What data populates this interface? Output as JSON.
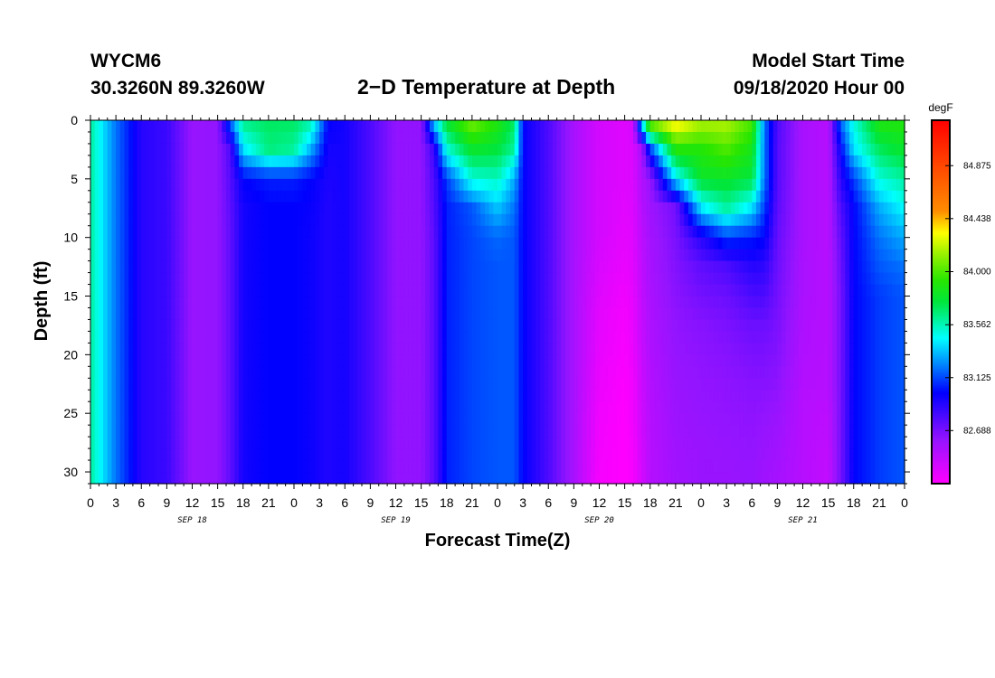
{
  "header": {
    "station": "WYCM6",
    "coords": "30.3260N 89.3260W",
    "title": "2−D Temperature at Depth",
    "model_start_label": "Model Start Time",
    "model_start_value": "09/18/2020 Hour 00"
  },
  "chart_data": {
    "type": "heatmap",
    "title": "2−D Temperature at Depth",
    "xlabel": "Forecast Time(Z)",
    "ylabel": "Depth (ft)",
    "x_range_hours": [
      0,
      96
    ],
    "ylim": [
      0,
      31
    ],
    "y_inverted": true,
    "x_tick_labels": [
      "0",
      "3",
      "6",
      "9",
      "12",
      "15",
      "18",
      "21",
      "0",
      "3",
      "6",
      "9",
      "12",
      "15",
      "18",
      "21",
      "0",
      "3",
      "6",
      "9",
      "12",
      "15",
      "18",
      "21",
      "0",
      "3",
      "6",
      "9",
      "12",
      "15",
      "18",
      "21",
      "0"
    ],
    "y_ticks": [
      0,
      5,
      10,
      15,
      20,
      25,
      30
    ],
    "day_labels": [
      {
        "label": "SEP 18",
        "hour": 12
      },
      {
        "label": "SEP 19",
        "hour": 36
      },
      {
        "label": "SEP 20",
        "hour": 60
      },
      {
        "label": "SEP 21",
        "hour": 84
      }
    ],
    "colorbar": {
      "unit": "degF",
      "min": 82.25,
      "max": 85.25,
      "tick_values": [
        "84.875",
        "84.438",
        "84.000",
        "83.562",
        "83.125",
        "82.688"
      ]
    },
    "depth_rows": [
      0,
      2.5,
      5,
      7.5,
      10,
      12.5,
      15,
      17.5,
      20,
      22.5,
      25,
      27.5,
      30
    ],
    "temperature_profile": [
      {
        "hour": 0,
        "temps": [
          83.6,
          83.6,
          83.6,
          83.6,
          83.6,
          83.6,
          83.6,
          83.6,
          83.6,
          83.6,
          83.6,
          83.6,
          83.6
        ]
      },
      {
        "hour": 3,
        "temps": [
          83.2,
          83.2,
          83.2,
          83.2,
          83.2,
          83.2,
          83.2,
          83.2,
          83.2,
          83.2,
          83.2,
          83.2,
          83.2
        ]
      },
      {
        "hour": 6,
        "temps": [
          82.9,
          82.9,
          82.9,
          82.9,
          82.9,
          82.9,
          82.9,
          82.9,
          82.9,
          82.9,
          82.9,
          82.9,
          82.9
        ]
      },
      {
        "hour": 9,
        "temps": [
          82.85,
          82.85,
          82.85,
          82.85,
          82.85,
          82.85,
          82.85,
          82.85,
          82.85,
          82.85,
          82.85,
          82.85,
          82.85
        ]
      },
      {
        "hour": 12,
        "temps": [
          82.6,
          82.6,
          82.6,
          82.6,
          82.6,
          82.6,
          82.6,
          82.6,
          82.6,
          82.6,
          82.6,
          82.6,
          82.6
        ]
      },
      {
        "hour": 15,
        "temps": [
          82.62,
          82.62,
          82.62,
          82.62,
          82.62,
          82.62,
          82.62,
          82.62,
          82.62,
          82.62,
          82.62,
          82.62,
          82.62
        ]
      },
      {
        "hour": 16.5,
        "temps": [
          83.2,
          82.8,
          82.78,
          82.76,
          82.75,
          82.75,
          82.75,
          82.75,
          82.75,
          82.75,
          82.75,
          82.75,
          82.75
        ]
      },
      {
        "hour": 18,
        "temps": [
          83.65,
          83.4,
          83.0,
          82.95,
          82.95,
          82.95,
          82.95,
          82.95,
          82.95,
          82.95,
          82.95,
          82.95,
          82.95
        ]
      },
      {
        "hour": 21,
        "temps": [
          83.7,
          83.65,
          83.05,
          83.0,
          83.0,
          83.0,
          83.0,
          83.0,
          83.0,
          83.0,
          83.0,
          83.0,
          83.0
        ]
      },
      {
        "hour": 24,
        "temps": [
          83.7,
          83.6,
          83.05,
          83.0,
          83.0,
          83.0,
          83.0,
          83.0,
          83.0,
          83.0,
          83.0,
          83.0,
          83.0
        ]
      },
      {
        "hour": 26,
        "temps": [
          83.6,
          83.3,
          83.0,
          82.98,
          82.97,
          82.97,
          82.97,
          82.97,
          82.97,
          82.97,
          82.97,
          82.97,
          82.97
        ]
      },
      {
        "hour": 28,
        "temps": [
          83.0,
          82.95,
          82.93,
          82.92,
          82.92,
          82.92,
          82.92,
          82.92,
          82.92,
          82.92,
          82.92,
          82.92,
          82.92
        ]
      },
      {
        "hour": 30,
        "temps": [
          82.95,
          82.95,
          82.95,
          82.95,
          82.95,
          82.95,
          82.95,
          82.95,
          82.95,
          82.95,
          82.95,
          82.95,
          82.95
        ]
      },
      {
        "hour": 33,
        "temps": [
          82.8,
          82.8,
          82.8,
          82.8,
          82.8,
          82.8,
          82.8,
          82.8,
          82.8,
          82.8,
          82.8,
          82.8,
          82.8
        ]
      },
      {
        "hour": 36,
        "temps": [
          82.62,
          82.62,
          82.62,
          82.62,
          82.62,
          82.62,
          82.62,
          82.62,
          82.62,
          82.62,
          82.62,
          82.62,
          82.62
        ]
      },
      {
        "hour": 39,
        "temps": [
          82.62,
          82.62,
          82.62,
          82.62,
          82.62,
          82.62,
          82.62,
          82.62,
          82.62,
          82.62,
          82.62,
          82.62,
          82.62
        ]
      },
      {
        "hour": 40.5,
        "temps": [
          83.4,
          82.85,
          82.8,
          82.78,
          82.76,
          82.76,
          82.76,
          82.76,
          82.76,
          82.76,
          82.76,
          82.76,
          82.76
        ]
      },
      {
        "hour": 42,
        "temps": [
          83.8,
          83.5,
          83.1,
          83.05,
          83.05,
          83.05,
          83.05,
          83.05,
          83.05,
          83.05,
          83.05,
          83.05,
          83.05
        ]
      },
      {
        "hour": 45,
        "temps": [
          84.1,
          83.8,
          83.5,
          83.15,
          83.12,
          83.12,
          83.12,
          83.12,
          83.12,
          83.12,
          83.12,
          83.12,
          83.12
        ]
      },
      {
        "hour": 48,
        "temps": [
          83.9,
          83.75,
          83.55,
          83.35,
          83.18,
          83.15,
          83.15,
          83.15,
          83.15,
          83.15,
          83.15,
          83.15,
          83.15
        ]
      },
      {
        "hour": 50,
        "temps": [
          83.7,
          83.6,
          83.3,
          83.2,
          83.15,
          83.15,
          83.15,
          83.15,
          83.15,
          83.15,
          83.15,
          83.15,
          83.15
        ]
      },
      {
        "hour": 51,
        "temps": [
          83.0,
          83.0,
          83.0,
          83.0,
          83.0,
          83.0,
          83.0,
          83.0,
          83.0,
          83.0,
          83.0,
          83.0,
          83.0
        ]
      },
      {
        "hour": 54,
        "temps": [
          82.8,
          82.8,
          82.8,
          82.8,
          82.8,
          82.8,
          82.8,
          82.8,
          82.8,
          82.8,
          82.8,
          82.8,
          82.8
        ]
      },
      {
        "hour": 57,
        "temps": [
          82.55,
          82.55,
          82.55,
          82.55,
          82.55,
          82.55,
          82.55,
          82.55,
          82.55,
          82.55,
          82.55,
          82.55,
          82.55
        ]
      },
      {
        "hour": 60,
        "temps": [
          82.4,
          82.4,
          82.4,
          82.4,
          82.4,
          82.38,
          82.36,
          82.34,
          82.33,
          82.32,
          82.3,
          82.29,
          82.28
        ]
      },
      {
        "hour": 63,
        "temps": [
          82.36,
          82.36,
          82.36,
          82.35,
          82.34,
          82.32,
          82.3,
          82.28,
          82.27,
          82.26,
          82.25,
          82.25,
          82.25
        ]
      },
      {
        "hour": 64,
        "temps": [
          82.4,
          82.38,
          82.38,
          82.37,
          82.36,
          82.35,
          82.34,
          82.33,
          82.32,
          82.3,
          82.3,
          82.29,
          82.28
        ]
      },
      {
        "hour": 65,
        "temps": [
          83.5,
          82.55,
          82.52,
          82.5,
          82.48,
          82.47,
          82.46,
          82.45,
          82.44,
          82.43,
          82.42,
          82.41,
          82.4
        ]
      },
      {
        "hour": 66,
        "temps": [
          84.2,
          83.1,
          82.6,
          82.58,
          82.56,
          82.55,
          82.54,
          82.53,
          82.52,
          82.51,
          82.5,
          82.5,
          82.5
        ]
      },
      {
        "hour": 69,
        "temps": [
          84.4,
          83.9,
          83.4,
          82.7,
          82.68,
          82.66,
          82.64,
          82.62,
          82.61,
          82.6,
          82.59,
          82.58,
          82.57
        ]
      },
      {
        "hour": 72,
        "temps": [
          84.2,
          83.9,
          83.8,
          83.4,
          82.9,
          82.75,
          82.7,
          82.65,
          82.63,
          82.62,
          82.61,
          82.6,
          82.6
        ]
      },
      {
        "hour": 75,
        "temps": [
          84.2,
          84.0,
          83.8,
          83.6,
          83.1,
          82.8,
          82.72,
          82.68,
          82.65,
          82.63,
          82.62,
          82.61,
          82.6
        ]
      },
      {
        "hour": 78,
        "temps": [
          84.0,
          83.85,
          83.75,
          83.4,
          83.05,
          82.9,
          82.8,
          82.72,
          82.68,
          82.65,
          82.63,
          82.62,
          82.61
        ]
      },
      {
        "hour": 79.5,
        "temps": [
          83.2,
          83.2,
          83.2,
          83.1,
          83.0,
          82.88,
          82.8,
          82.72,
          82.68,
          82.65,
          82.62,
          82.6,
          82.58
        ]
      },
      {
        "hour": 81,
        "temps": [
          82.8,
          82.78,
          82.78,
          82.76,
          82.74,
          82.72,
          82.7,
          82.68,
          82.66,
          82.63,
          82.6,
          82.58,
          82.56
        ]
      },
      {
        "hour": 84,
        "temps": [
          82.55,
          82.55,
          82.55,
          82.55,
          82.55,
          82.54,
          82.54,
          82.53,
          82.52,
          82.51,
          82.5,
          82.5,
          82.5
        ]
      },
      {
        "hour": 87,
        "temps": [
          82.5,
          82.5,
          82.5,
          82.5,
          82.5,
          82.5,
          82.5,
          82.5,
          82.5,
          82.5,
          82.48,
          82.47,
          82.46
        ]
      },
      {
        "hour": 88.5,
        "temps": [
          83.2,
          83.0,
          82.9,
          82.8,
          82.75,
          82.72,
          82.7,
          82.7,
          82.7,
          82.7,
          82.7,
          82.7,
          82.7
        ]
      },
      {
        "hour": 90,
        "temps": [
          83.5,
          83.4,
          83.1,
          83.0,
          83.0,
          83.0,
          83.0,
          83.0,
          83.0,
          83.0,
          83.0,
          83.0,
          83.0
        ]
      },
      {
        "hour": 93,
        "temps": [
          83.9,
          83.7,
          83.5,
          83.3,
          83.2,
          83.15,
          83.1,
          83.1,
          83.1,
          83.1,
          83.1,
          83.1,
          83.1
        ]
      },
      {
        "hour": 96,
        "temps": [
          83.9,
          83.8,
          83.6,
          83.45,
          83.3,
          83.2,
          83.15,
          83.15,
          83.15,
          83.15,
          83.15,
          83.15,
          83.15
        ]
      }
    ]
  }
}
